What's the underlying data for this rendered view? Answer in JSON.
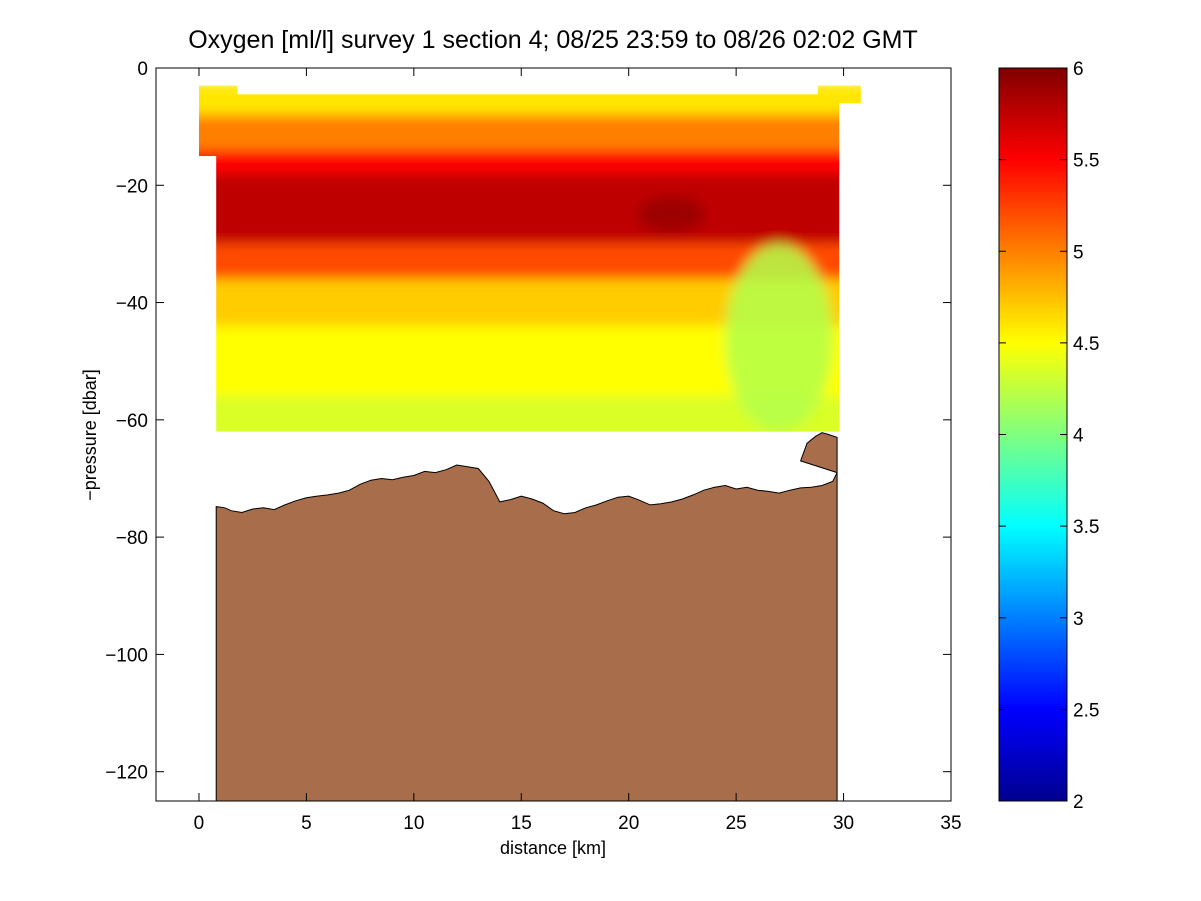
{
  "chart_data": {
    "type": "heatmap",
    "title": "Oxygen [ml/l] survey 1 section 4; 08/25 23:59 to 08/26 02:02 GMT",
    "xlabel": "distance [km]",
    "ylabel": "−pressure [dbar]",
    "xlim": [
      -2,
      35
    ],
    "ylim": [
      -125,
      0
    ],
    "xticks": [
      0,
      5,
      10,
      15,
      20,
      25,
      30,
      35
    ],
    "xtick_labels": [
      "0",
      "5",
      "10",
      "15",
      "20",
      "25",
      "30",
      "35"
    ],
    "yticks": [
      0,
      -20,
      -40,
      -60,
      -80,
      -100,
      -120
    ],
    "ytick_labels": [
      "0",
      "−20",
      "−40",
      "−60",
      "−80",
      "−100",
      "−120"
    ],
    "colorbar": {
      "colormap": "jet",
      "range": [
        2,
        6
      ],
      "ticks": [
        2,
        2.5,
        3,
        3.5,
        4,
        4.5,
        5,
        5.5,
        6
      ],
      "tick_labels": [
        "2",
        "2.5",
        "3",
        "3.5",
        "4",
        "4.5",
        "5",
        "5.5",
        "6"
      ]
    },
    "layers": [
      {
        "from_depth": -3.5,
        "to_depth": -8,
        "value": 4.6
      },
      {
        "from_depth": -8,
        "to_depth": -14,
        "value": 5.0
      },
      {
        "from_depth": -14,
        "to_depth": -18,
        "value": 5.5
      },
      {
        "from_depth": -18,
        "to_depth": -30,
        "value": 5.75
      },
      {
        "from_depth": -30,
        "to_depth": -36,
        "value": 5.2
      },
      {
        "from_depth": -36,
        "to_depth": -44,
        "value": 4.7
      },
      {
        "from_depth": -44,
        "to_depth": -56,
        "value": 4.5
      },
      {
        "from_depth": -56,
        "to_depth": -75,
        "value": 4.35
      }
    ],
    "features": [
      {
        "label": "oxygen maximum core",
        "x": 22,
        "depth": -25,
        "value": 5.9
      },
      {
        "label": "eastern low-oxygen water",
        "x_range": [
          24.5,
          29.5
        ],
        "depth_range": [
          -30,
          -62
        ],
        "value": 4.2
      }
    ],
    "bathymetry_color": "#a86d4a",
    "bathymetry": {
      "x": [
        0.8,
        1.2,
        1.5,
        2.0,
        2.5,
        3.0,
        3.5,
        4.0,
        4.5,
        5.0,
        5.5,
        6.0,
        6.5,
        7.0,
        7.5,
        8.0,
        8.5,
        9.0,
        9.5,
        10.0,
        10.5,
        11.0,
        11.5,
        12.0,
        12.5,
        13.0,
        13.5,
        14.0,
        14.5,
        15.0,
        15.5,
        16.0,
        16.5,
        17.0,
        17.5,
        18.0,
        18.5,
        19.0,
        19.5,
        20.0,
        20.5,
        21.0,
        21.5,
        22.0,
        22.5,
        23.0,
        23.5,
        24.0,
        24.5,
        25.0,
        25.5,
        26.0,
        26.5,
        27.0,
        27.5,
        28.0,
        28.5,
        29.0,
        29.5,
        29.7
      ],
      "depth": [
        -74.8,
        -75.0,
        -75.5,
        -75.8,
        -75.2,
        -75.0,
        -75.3,
        -74.5,
        -73.8,
        -73.3,
        -73.0,
        -72.8,
        -72.5,
        -72.0,
        -71.0,
        -70.3,
        -70.0,
        -70.2,
        -69.8,
        -69.5,
        -68.8,
        -69.0,
        -68.5,
        -67.7,
        -68.0,
        -68.3,
        -70.5,
        -74.0,
        -73.6,
        -73.0,
        -73.5,
        -74.2,
        -75.5,
        -76.0,
        -75.8,
        -75.0,
        -74.5,
        -73.8,
        -73.2,
        -73.0,
        -73.7,
        -74.5,
        -74.3,
        -74.0,
        -73.5,
        -72.8,
        -72.0,
        -71.5,
        -71.2,
        -71.8,
        -71.5,
        -72.0,
        -72.2,
        -72.5,
        -72.0,
        -71.6,
        -71.5,
        -71.2,
        -70.5,
        -69.0
      ]
    },
    "bathymetry_tail": {
      "x": [
        28.0,
        28.3,
        28.7,
        29.0,
        29.3,
        29.7
      ],
      "depth": [
        -67.0,
        -64.0,
        -62.8,
        -62.2,
        -62.5,
        -63.0
      ]
    },
    "data_boundary": {
      "x": [
        0.0,
        0.0,
        1.8,
        1.8,
        28.8,
        28.8,
        30.8,
        30.8,
        29.8,
        29.8,
        0.8,
        0.8,
        0.0
      ],
      "depth": [
        -15,
        -3,
        -3,
        -4.5,
        -4.5,
        -3,
        -3,
        -6,
        -6,
        -62,
        -62,
        -15,
        -15
      ]
    }
  }
}
